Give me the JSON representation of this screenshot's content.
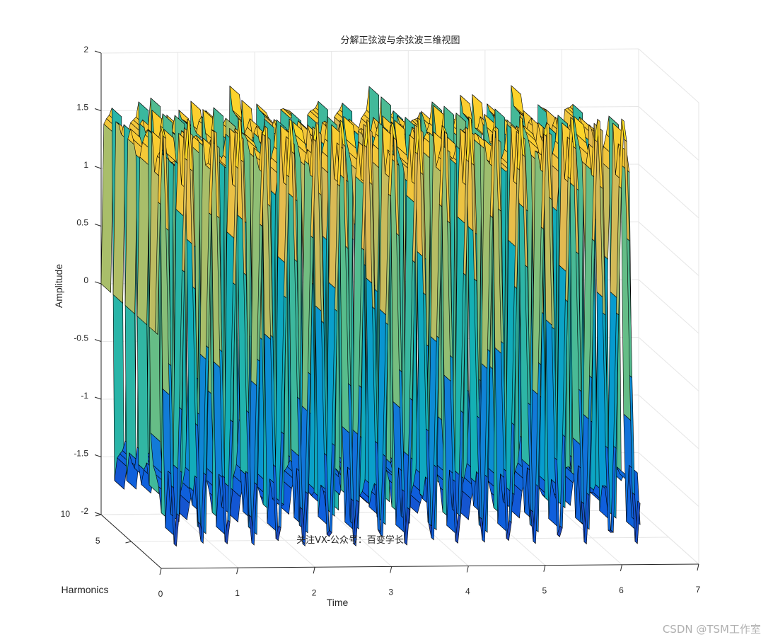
{
  "chart_data": {
    "type": "surface",
    "title": "分解正弦波与余弦波三维视图",
    "xlabel": "Time",
    "ylabel": "Harmonics",
    "zlabel": "Amplitude",
    "xlim": [
      0,
      7
    ],
    "ylim": [
      0,
      10
    ],
    "zlim": [
      -2,
      2
    ],
    "xticks": [
      "0",
      "1",
      "2",
      "3",
      "4",
      "5",
      "6",
      "7"
    ],
    "yticks": [
      "5",
      "10"
    ],
    "zticks": [
      "-2",
      "-1.5",
      "-1",
      "-0.5",
      "0",
      "0.5",
      "1",
      "1.5",
      "2"
    ],
    "grid": true,
    "colormap": "parula",
    "annotation": "关注VX-公众号：百变学长",
    "num_square_wave_periods": 6
  },
  "watermark": "CSDN @TSM工作室",
  "colors": {
    "background": "#ffffff",
    "axis": "#262626",
    "grid": "#e6e6e6",
    "edge": "#000000"
  }
}
